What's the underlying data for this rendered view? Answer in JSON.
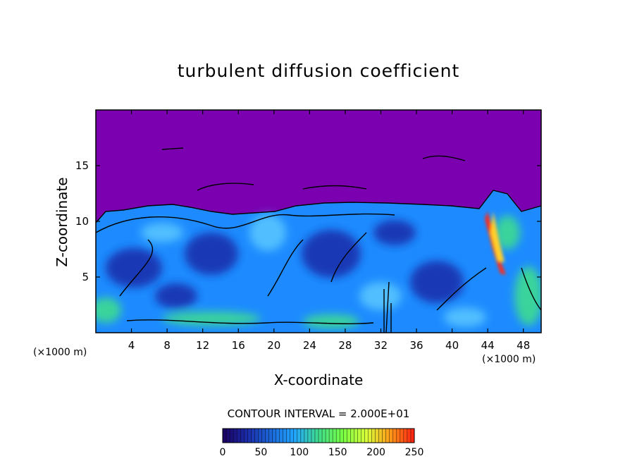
{
  "chart_data": {
    "type": "heatmap",
    "title": "turbulent diffusion coefficient",
    "xlabel": "X-coordinate",
    "ylabel": "Z-coordinate",
    "x_unit": "(×1000 m)",
    "y_unit": "(×1000 m)",
    "xlim": [
      0,
      50
    ],
    "ylim": [
      0,
      20
    ],
    "xticks": [
      4,
      8,
      12,
      16,
      20,
      24,
      28,
      32,
      36,
      40,
      44,
      48
    ],
    "yticks": [
      5,
      10,
      15
    ],
    "contour_interval_text": "CONTOUR INTERVAL = 2.000E+01",
    "colorbar": {
      "range": [
        0,
        250
      ],
      "ticks": [
        0,
        50,
        100,
        150,
        200,
        250
      ],
      "colors": [
        "#1a0060",
        "#1b2ba8",
        "#1b66d8",
        "#22a6ff",
        "#3fdc8c",
        "#77ff44",
        "#d8ff3a",
        "#ff9a18",
        "#ff1e12"
      ]
    },
    "field_colors": {
      "background": "#7a00b0",
      "low": "#1b2ba8",
      "mid": "#1d8bff",
      "high": "#3ee08a",
      "peak": "#ff2a12",
      "contour_line": "#000000"
    }
  }
}
